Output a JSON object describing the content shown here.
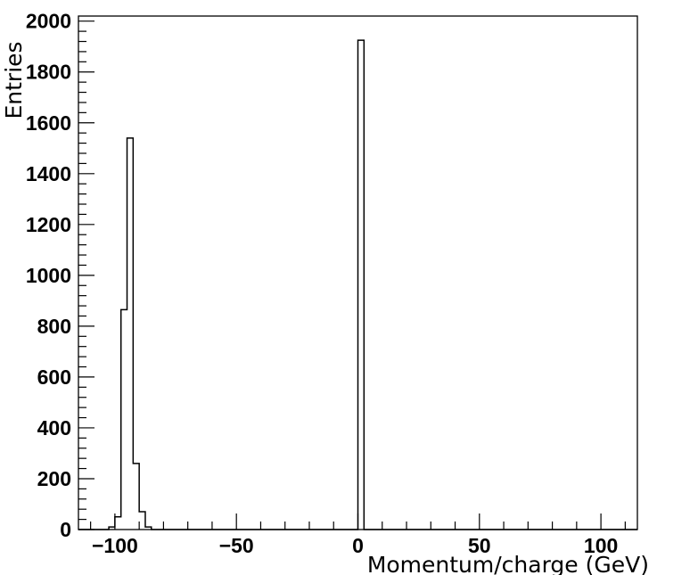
{
  "chart_data": {
    "type": "histogram",
    "xlabel": "Momentum/charge (GeV)",
    "ylabel": "Entries",
    "xlim": [
      -115,
      115
    ],
    "ylim": [
      0,
      2020
    ],
    "grid": false,
    "bin_width": 2.5,
    "x_ticks": [
      -100,
      -50,
      0,
      50,
      100
    ],
    "x_tick_labels": [
      "−100",
      "−50",
      "0",
      "50",
      "100"
    ],
    "y_ticks": [
      0,
      200,
      400,
      600,
      800,
      1000,
      1200,
      1400,
      1600,
      1800,
      2000
    ],
    "y_tick_labels": [
      "0",
      "200",
      "400",
      "600",
      "800",
      "1000",
      "1200",
      "1400",
      "1600",
      "1800",
      "2000"
    ],
    "bins": [
      {
        "x_low": -102.5,
        "x_high": -100.0,
        "value": 10
      },
      {
        "x_low": -100.0,
        "x_high": -97.5,
        "value": 50
      },
      {
        "x_low": -97.5,
        "x_high": -95.0,
        "value": 865
      },
      {
        "x_low": -95.0,
        "x_high": -92.5,
        "value": 1540
      },
      {
        "x_low": -92.5,
        "x_high": -90.0,
        "value": 260
      },
      {
        "x_low": -90.0,
        "x_high": -87.5,
        "value": 70
      },
      {
        "x_low": -87.5,
        "x_high": -85.0,
        "value": 10
      },
      {
        "x_low": 0.0,
        "x_high": 2.5,
        "value": 1925
      }
    ]
  }
}
